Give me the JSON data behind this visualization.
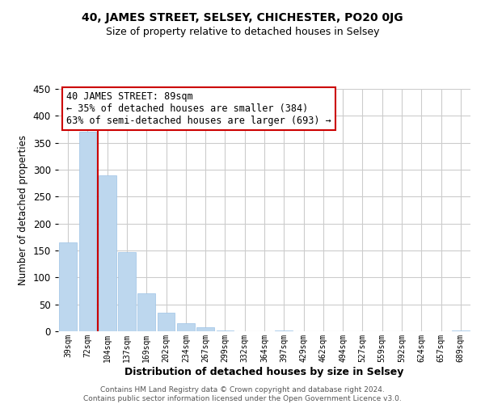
{
  "title": "40, JAMES STREET, SELSEY, CHICHESTER, PO20 0JG",
  "subtitle": "Size of property relative to detached houses in Selsey",
  "xlabel": "Distribution of detached houses by size in Selsey",
  "ylabel": "Number of detached properties",
  "bar_color": "#BDD7EE",
  "bar_edge_color": "#9DC3E6",
  "vline_color": "#CC0000",
  "categories": [
    "39sqm",
    "72sqm",
    "104sqm",
    "137sqm",
    "169sqm",
    "202sqm",
    "234sqm",
    "267sqm",
    "299sqm",
    "332sqm",
    "364sqm",
    "397sqm",
    "429sqm",
    "462sqm",
    "494sqm",
    "527sqm",
    "559sqm",
    "592sqm",
    "624sqm",
    "657sqm",
    "689sqm"
  ],
  "values": [
    165,
    370,
    290,
    147,
    70,
    35,
    15,
    7,
    2,
    0,
    0,
    1,
    0,
    0,
    0,
    0,
    0,
    0,
    0,
    0,
    2
  ],
  "ylim": [
    0,
    450
  ],
  "yticks": [
    0,
    50,
    100,
    150,
    200,
    250,
    300,
    350,
    400,
    450
  ],
  "annotation_line1": "40 JAMES STREET: 89sqm",
  "annotation_line2": "← 35% of detached houses are smaller (384)",
  "annotation_line3": "63% of semi-detached houses are larger (693) →",
  "footer_line1": "Contains HM Land Registry data © Crown copyright and database right 2024.",
  "footer_line2": "Contains public sector information licensed under the Open Government Licence v3.0.",
  "background_color": "#FFFFFF",
  "grid_color": "#CCCCCC",
  "vline_bar_index": 1.5
}
